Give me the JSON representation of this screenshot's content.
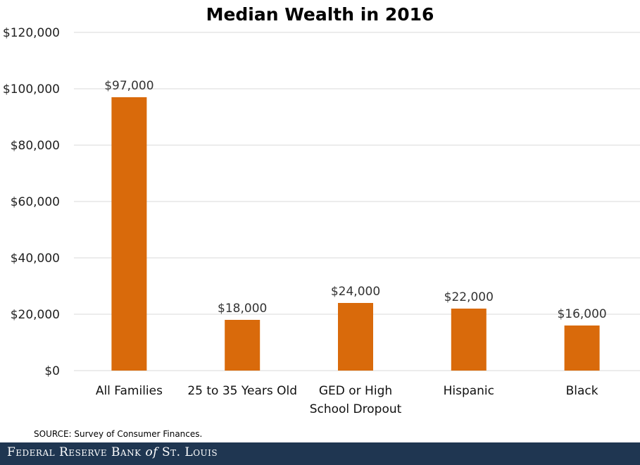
{
  "chart_data": {
    "type": "bar",
    "title": "Median Wealth in 2016",
    "categories": [
      [
        "All Families"
      ],
      [
        "25 to 35 Years Old"
      ],
      [
        "GED or High",
        "School Dropout"
      ],
      [
        "Hispanic"
      ],
      [
        "Black"
      ]
    ],
    "values": [
      97000,
      18000,
      24000,
      22000,
      16000
    ],
    "data_labels": [
      "$97,000",
      "$18,000",
      "$24,000",
      "$22,000",
      "$16,000"
    ],
    "ylim": [
      0,
      120000
    ],
    "yticks": [
      0,
      20000,
      40000,
      60000,
      80000,
      100000,
      120000
    ],
    "ytick_labels": [
      "$0",
      "$20,000",
      "$40,000",
      "$60,000",
      "$80,000",
      "$100,000",
      "$120,000"
    ],
    "xlabel": "",
    "ylabel": "",
    "grid": true,
    "bar_color": "#d96a0b",
    "grid_color": "#d9d9d9"
  },
  "source_note": "SOURCE: Survey of Consumer Finances.",
  "footer": {
    "logo_part1": "Federal Reserve Bank ",
    "logo_of": "of",
    "logo_part2": " St. Louis",
    "background_color": "#1f3651"
  }
}
